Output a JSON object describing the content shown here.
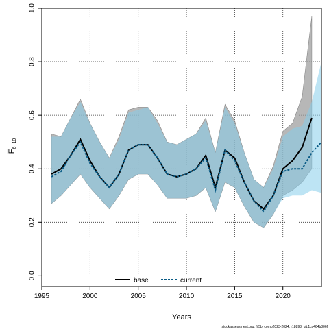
{
  "chart_data": {
    "type": "line",
    "title": "",
    "xlabel": "Years",
    "ylabel": "F̅",
    "ylabel_sub": "6−10",
    "xlim": [
      1995,
      2024
    ],
    "ylim": [
      0,
      1.0
    ],
    "x_ticks": [
      1995,
      2000,
      2005,
      2010,
      2015,
      2020
    ],
    "y_ticks": [
      0.0,
      0.2,
      0.4,
      0.6,
      0.8,
      1.0
    ],
    "x_tick_labels": [
      "1995",
      "2000",
      "2005",
      "2010",
      "2015",
      "2020"
    ],
    "y_tick_labels": [
      "0.0",
      "0.2",
      "0.4",
      "0.6",
      "0.8",
      "1.0"
    ],
    "grid": true,
    "legend_position": "bottom-center",
    "x": [
      1996,
      1997,
      1998,
      1999,
      2000,
      2001,
      2002,
      2003,
      2004,
      2005,
      2006,
      2007,
      2008,
      2009,
      2010,
      2011,
      2012,
      2013,
      2014,
      2015,
      2016,
      2017,
      2018,
      2019,
      2020,
      2021,
      2022,
      2023,
      2024
    ],
    "series": [
      {
        "name": "base",
        "color": "#000000",
        "style": "solid",
        "x": [
          1996,
          1997,
          1998,
          1999,
          2000,
          2001,
          2002,
          2003,
          2004,
          2005,
          2006,
          2007,
          2008,
          2009,
          2010,
          2011,
          2012,
          2013,
          2014,
          2015,
          2016,
          2017,
          2018,
          2019,
          2020,
          2021,
          2022,
          2023
        ],
        "values": [
          0.38,
          0.4,
          0.45,
          0.51,
          0.43,
          0.37,
          0.33,
          0.38,
          0.47,
          0.49,
          0.49,
          0.44,
          0.38,
          0.37,
          0.38,
          0.4,
          0.45,
          0.33,
          0.47,
          0.44,
          0.35,
          0.28,
          0.25,
          0.3,
          0.4,
          0.43,
          0.48,
          0.59
        ],
        "lower": [
          0.27,
          0.3,
          0.34,
          0.38,
          0.33,
          0.29,
          0.25,
          0.3,
          0.36,
          0.38,
          0.38,
          0.34,
          0.29,
          0.29,
          0.29,
          0.3,
          0.33,
          0.24,
          0.35,
          0.33,
          0.26,
          0.2,
          0.18,
          0.23,
          0.3,
          0.32,
          0.35,
          0.4
        ],
        "upper": [
          0.53,
          0.52,
          0.59,
          0.66,
          0.57,
          0.5,
          0.44,
          0.52,
          0.62,
          0.63,
          0.63,
          0.58,
          0.5,
          0.49,
          0.51,
          0.53,
          0.59,
          0.46,
          0.64,
          0.58,
          0.46,
          0.36,
          0.33,
          0.41,
          0.54,
          0.57,
          0.67,
          0.97
        ]
      },
      {
        "name": "current",
        "color": "#0b5c86",
        "style": "dashed",
        "x": [
          1996,
          1997,
          1998,
          1999,
          2000,
          2001,
          2002,
          2003,
          2004,
          2005,
          2006,
          2007,
          2008,
          2009,
          2010,
          2011,
          2012,
          2013,
          2014,
          2015,
          2016,
          2017,
          2018,
          2019,
          2020,
          2021,
          2022,
          2023,
          2024
        ],
        "values": [
          0.37,
          0.39,
          0.45,
          0.5,
          0.42,
          0.37,
          0.33,
          0.38,
          0.47,
          0.49,
          0.49,
          0.44,
          0.38,
          0.37,
          0.38,
          0.4,
          0.44,
          0.32,
          0.47,
          0.43,
          0.35,
          0.28,
          0.24,
          0.3,
          0.39,
          0.4,
          0.4,
          0.46,
          0.5
        ],
        "lower": [
          0.27,
          0.3,
          0.34,
          0.38,
          0.33,
          0.29,
          0.25,
          0.3,
          0.36,
          0.38,
          0.38,
          0.34,
          0.29,
          0.29,
          0.29,
          0.3,
          0.33,
          0.24,
          0.35,
          0.33,
          0.26,
          0.2,
          0.18,
          0.23,
          0.29,
          0.3,
          0.3,
          0.32,
          0.31
        ],
        "upper": [
          0.52,
          0.52,
          0.59,
          0.65,
          0.57,
          0.5,
          0.44,
          0.51,
          0.61,
          0.62,
          0.63,
          0.57,
          0.5,
          0.49,
          0.51,
          0.53,
          0.58,
          0.46,
          0.63,
          0.57,
          0.46,
          0.36,
          0.33,
          0.4,
          0.52,
          0.55,
          0.56,
          0.65,
          0.8
        ]
      }
    ]
  },
  "legend": {
    "base_label": "base",
    "current_label": "current"
  },
  "footer": {
    "watermark": "stockassessment.org, fit5b_comp2023-2024, r18893, git:1cc464b806f"
  },
  "colors": {
    "band_base": "#999999",
    "band_current": "#87ceeb",
    "overlap": "#9cc1d2"
  }
}
